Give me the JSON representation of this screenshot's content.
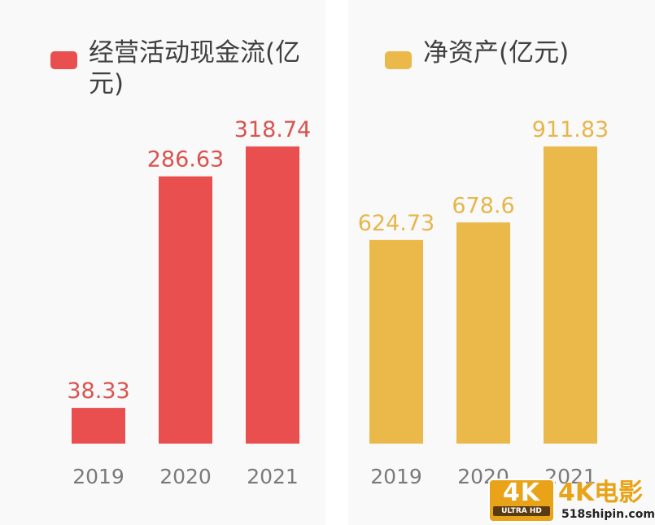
{
  "chart_data": [
    {
      "type": "bar",
      "title": "",
      "legend_label": "经营活动现金流(亿元)",
      "color": "#e94f4f",
      "categories": [
        "2019",
        "2020",
        "2021"
      ],
      "values": [
        38.33,
        286.63,
        318.74
      ],
      "value_labels": [
        "38.33",
        "286.63",
        "318.74"
      ],
      "ylim": [
        0,
        330
      ],
      "grid": false,
      "legend_position": "top-left"
    },
    {
      "type": "bar",
      "title": "",
      "legend_label": "净资产(亿元)",
      "color": "#ebb94a",
      "categories": [
        "2019",
        "2020",
        "2021"
      ],
      "values": [
        624.73,
        678.6,
        911.83
      ],
      "value_labels": [
        "624.73",
        "678.6",
        "911.83"
      ],
      "ylim": [
        0,
        944
      ],
      "grid": false,
      "legend_position": "top-right"
    }
  ],
  "watermark": {
    "badge_big": "4K",
    "badge_small": "ULTRA HD",
    "title": "4K电影",
    "url": "518shipin.com"
  }
}
